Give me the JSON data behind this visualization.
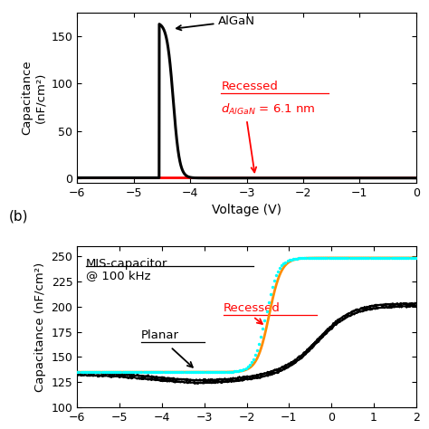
{
  "panel_a": {
    "xlabel": "Voltage (V)",
    "ylabel": "Capacitance\n(nF/cm²)",
    "xlim": [
      -6,
      0
    ],
    "ylim": [
      -5,
      175
    ],
    "yticks": [
      0,
      50,
      100,
      150
    ],
    "xticks": [
      -6,
      -5,
      -4,
      -3,
      -2,
      -1,
      0
    ]
  },
  "panel_b": {
    "xlabel": "Voltage (V)",
    "ylabel": "Capacitance (nF/cm²)",
    "xlim": [
      -6,
      2
    ],
    "ylim": [
      100,
      260
    ],
    "yticks": [
      150,
      200,
      250
    ],
    "xticks": [
      -6,
      -4,
      -2,
      0,
      2
    ]
  },
  "colors": {
    "black": "#000000",
    "red": "#FF0000",
    "cyan": "#00FFFF",
    "orange": "#FF8C00"
  }
}
